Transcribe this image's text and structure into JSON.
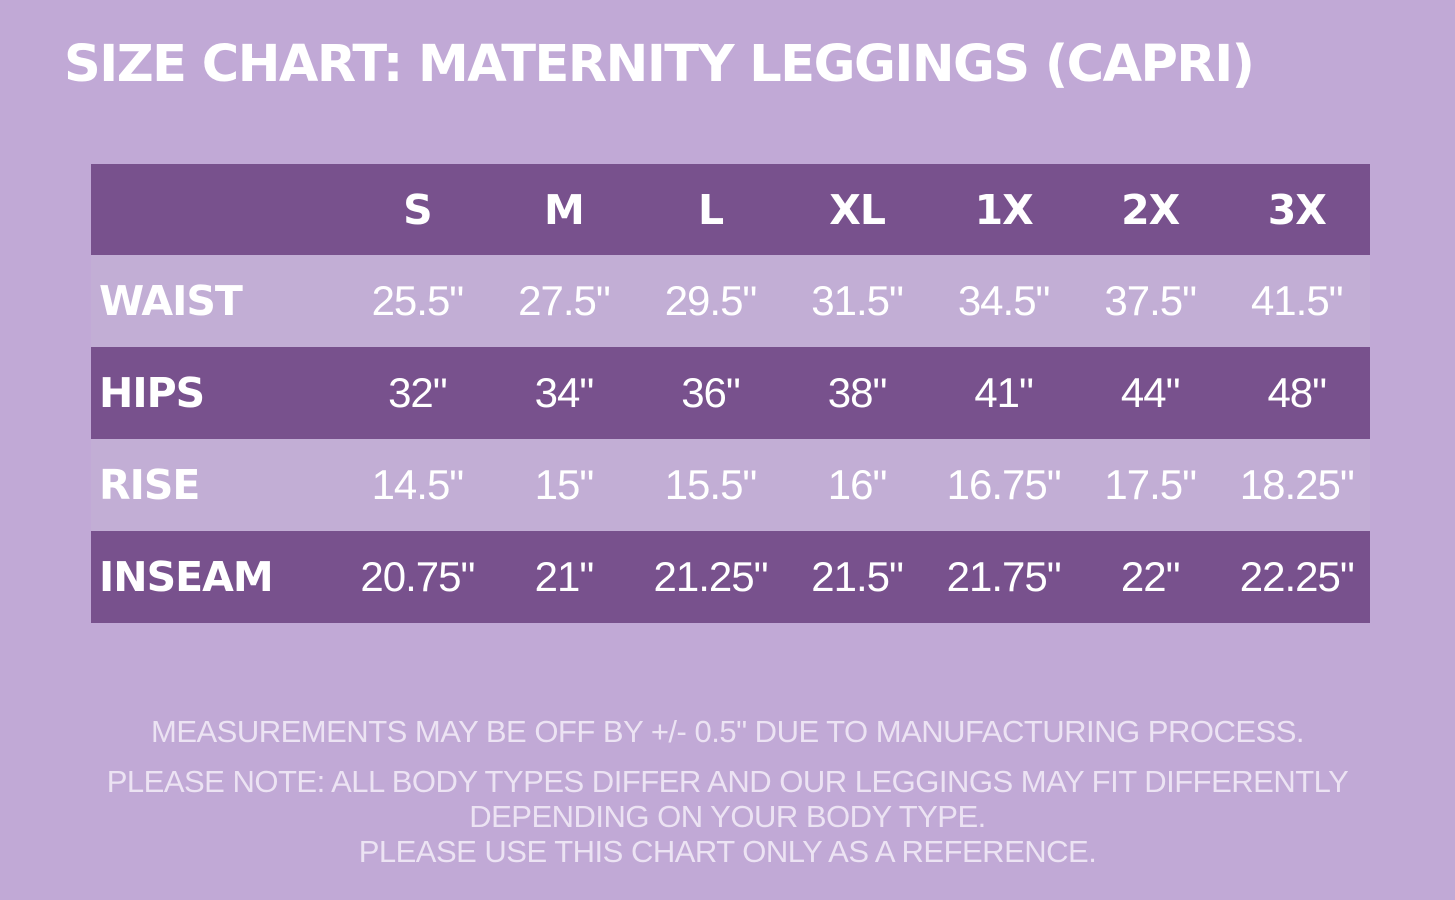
{
  "title": "SIZE CHART: MATERNITY LEGGINGS (CAPRI)",
  "table": {
    "headers": [
      "S",
      "M",
      "L",
      "XL",
      "1X",
      "2X",
      "3X"
    ],
    "rows": [
      {
        "label": "WAIST",
        "values": [
          "25.5\"",
          "27.5\"",
          "29.5\"",
          "31.5\"",
          "34.5\"",
          "37.5\"",
          "41.5\""
        ]
      },
      {
        "label": "HIPS",
        "values": [
          "32\"",
          "34\"",
          "36\"",
          "38\"",
          "41\"",
          "44\"",
          "48\""
        ]
      },
      {
        "label": "RISE",
        "values": [
          "14.5\"",
          "15\"",
          "15.5\"",
          "16\"",
          "16.75\"",
          "17.5\"",
          "18.25\""
        ]
      },
      {
        "label": "INSEAM",
        "values": [
          "20.75\"",
          "21\"",
          "21.25\"",
          "21.5\"",
          "21.75\"",
          "22\"",
          "22.25\""
        ]
      }
    ]
  },
  "notes": {
    "line1": "MEASUREMENTS MAY BE OFF BY +/- 0.5\" DUE TO MANUFACTURING PROCESS.",
    "line2": "PLEASE NOTE: ALL BODY TYPES DIFFER AND OUR LEGGINGS MAY FIT DIFFERENTLY",
    "line3": "DEPENDING ON YOUR BODY TYPE.",
    "line4": "PLEASE USE THIS CHART ONLY AS A REFERENCE."
  },
  "colors": {
    "background": "#c1a9d6",
    "dark_row": "#78518d",
    "light_row": "#c2aed5",
    "text": "#ffffff"
  }
}
